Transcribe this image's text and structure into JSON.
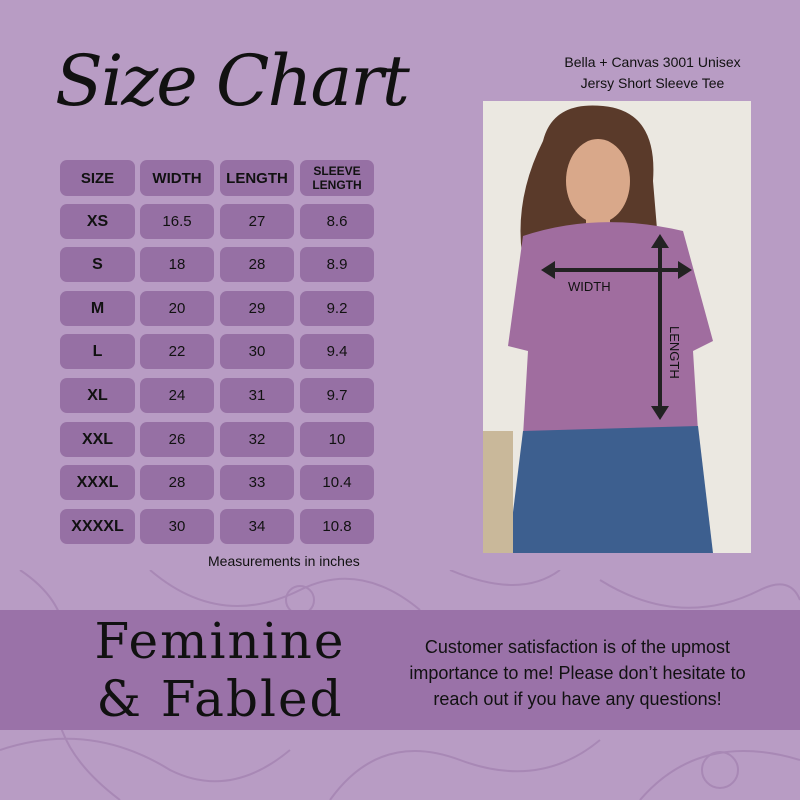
{
  "title": "Size Chart",
  "product": {
    "line1": "Bella + Canvas 3001 Unisex",
    "line2": "Jersy Short Sleeve Tee"
  },
  "table": {
    "headers": [
      "SIZE",
      "WIDTH",
      "LENGTH",
      "SLEEVE LENGTH"
    ],
    "rows": [
      [
        "XS",
        "16.5",
        "27",
        "8.6"
      ],
      [
        "S",
        "18",
        "28",
        "8.9"
      ],
      [
        "M",
        "20",
        "29",
        "9.2"
      ],
      [
        "L",
        "22",
        "30",
        "9.4"
      ],
      [
        "XL",
        "24",
        "31",
        "9.7"
      ],
      [
        "XXL",
        "26",
        "32",
        "10"
      ],
      [
        "XXXL",
        "28",
        "33",
        "10.4"
      ],
      [
        "XXXXL",
        "30",
        "34",
        "10.8"
      ]
    ]
  },
  "note": "Measurements in inches",
  "photo": {
    "width_label": "WIDTH",
    "length_label": "LENGTH"
  },
  "brand": {
    "line1": "Feminine",
    "line2": "& Fabled"
  },
  "message": "Customer satisfaction is of the upmost importance to me! Please don’t hesitate to reach out if you have any questions!",
  "colors": {
    "background": "#b89cc4",
    "cell": "#9670a4",
    "banner": "#9a72a8"
  }
}
